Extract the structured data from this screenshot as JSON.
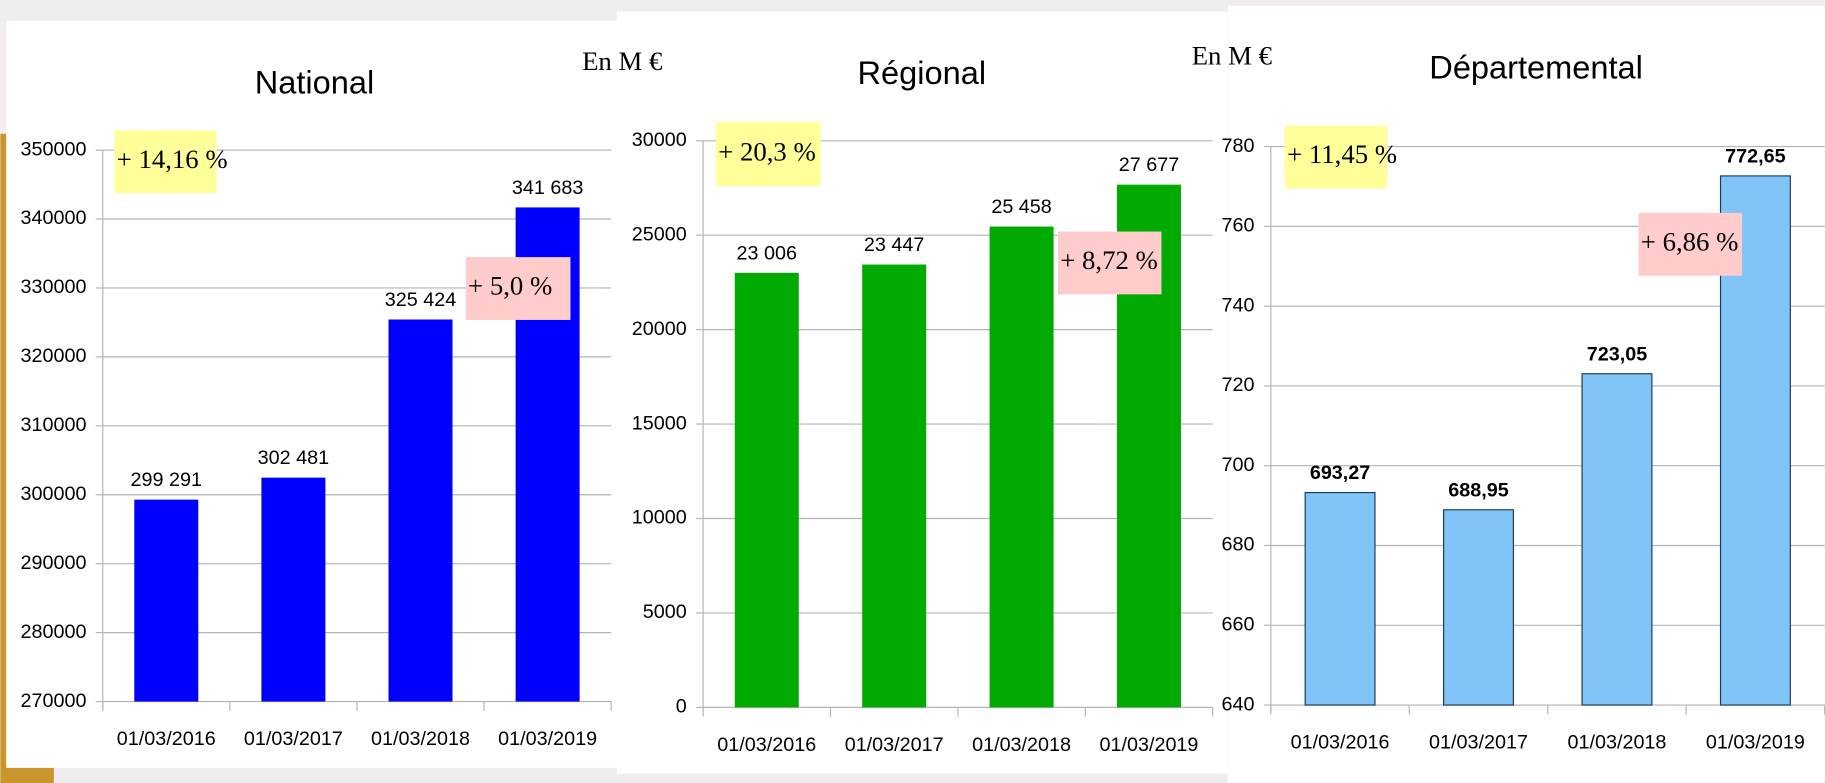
{
  "chart_data": [
    {
      "type": "bar",
      "title": "National",
      "categories": [
        "01/03/2016",
        "01/03/2017",
        "01/03/2018",
        "01/03/2019"
      ],
      "values": [
        299291,
        302481,
        325424,
        341683
      ],
      "value_labels": [
        "299 291",
        "302 481",
        "325 424",
        "341 683"
      ],
      "color": "#0000ff",
      "label_bold": false,
      "ylim": [
        270000,
        350000
      ],
      "yticks": [
        270000,
        280000,
        290000,
        300000,
        310000,
        320000,
        330000,
        340000,
        350000
      ],
      "grid": true,
      "annotations": [
        {
          "text": "+ 14,16 %",
          "color": "#ffff99"
        },
        {
          "text": "+ 5,0 %",
          "color": "#ffcccc"
        }
      ]
    },
    {
      "type": "bar",
      "title": "Régional",
      "unit": "En M €",
      "categories": [
        "01/03/2016",
        "01/03/2017",
        "01/03/2018",
        "01/03/2019"
      ],
      "values": [
        23006,
        23447,
        25458,
        27677
      ],
      "value_labels": [
        "23 006",
        "23 447",
        "25 458",
        "27 677"
      ],
      "color": "#00aa00",
      "label_bold": false,
      "ylim": [
        0,
        30000
      ],
      "yticks": [
        0,
        5000,
        10000,
        15000,
        20000,
        25000,
        30000
      ],
      "grid": true,
      "annotations": [
        {
          "text": "+ 20,3 %",
          "color": "#ffff99"
        },
        {
          "text": "+ 8,72 %",
          "color": "#ffcccc"
        }
      ]
    },
    {
      "type": "bar",
      "title": "Départemental",
      "unit": "En M €",
      "categories": [
        "01/03/2016",
        "01/03/2017",
        "01/03/2018",
        "01/03/2019"
      ],
      "values": [
        693.27,
        688.95,
        723.05,
        772.65
      ],
      "value_labels": [
        "693,27",
        "688,95",
        "723,05",
        "772,65"
      ],
      "color": "#80c4f8",
      "label_bold": true,
      "ylim": [
        640,
        780
      ],
      "yticks": [
        640,
        660,
        680,
        700,
        720,
        740,
        760,
        780
      ],
      "grid": true,
      "annotations": [
        {
          "text": "+ 11,45 %",
          "color": "#ffff99"
        },
        {
          "text": "+ 6,86 %",
          "color": "#ffcccc"
        }
      ]
    }
  ]
}
